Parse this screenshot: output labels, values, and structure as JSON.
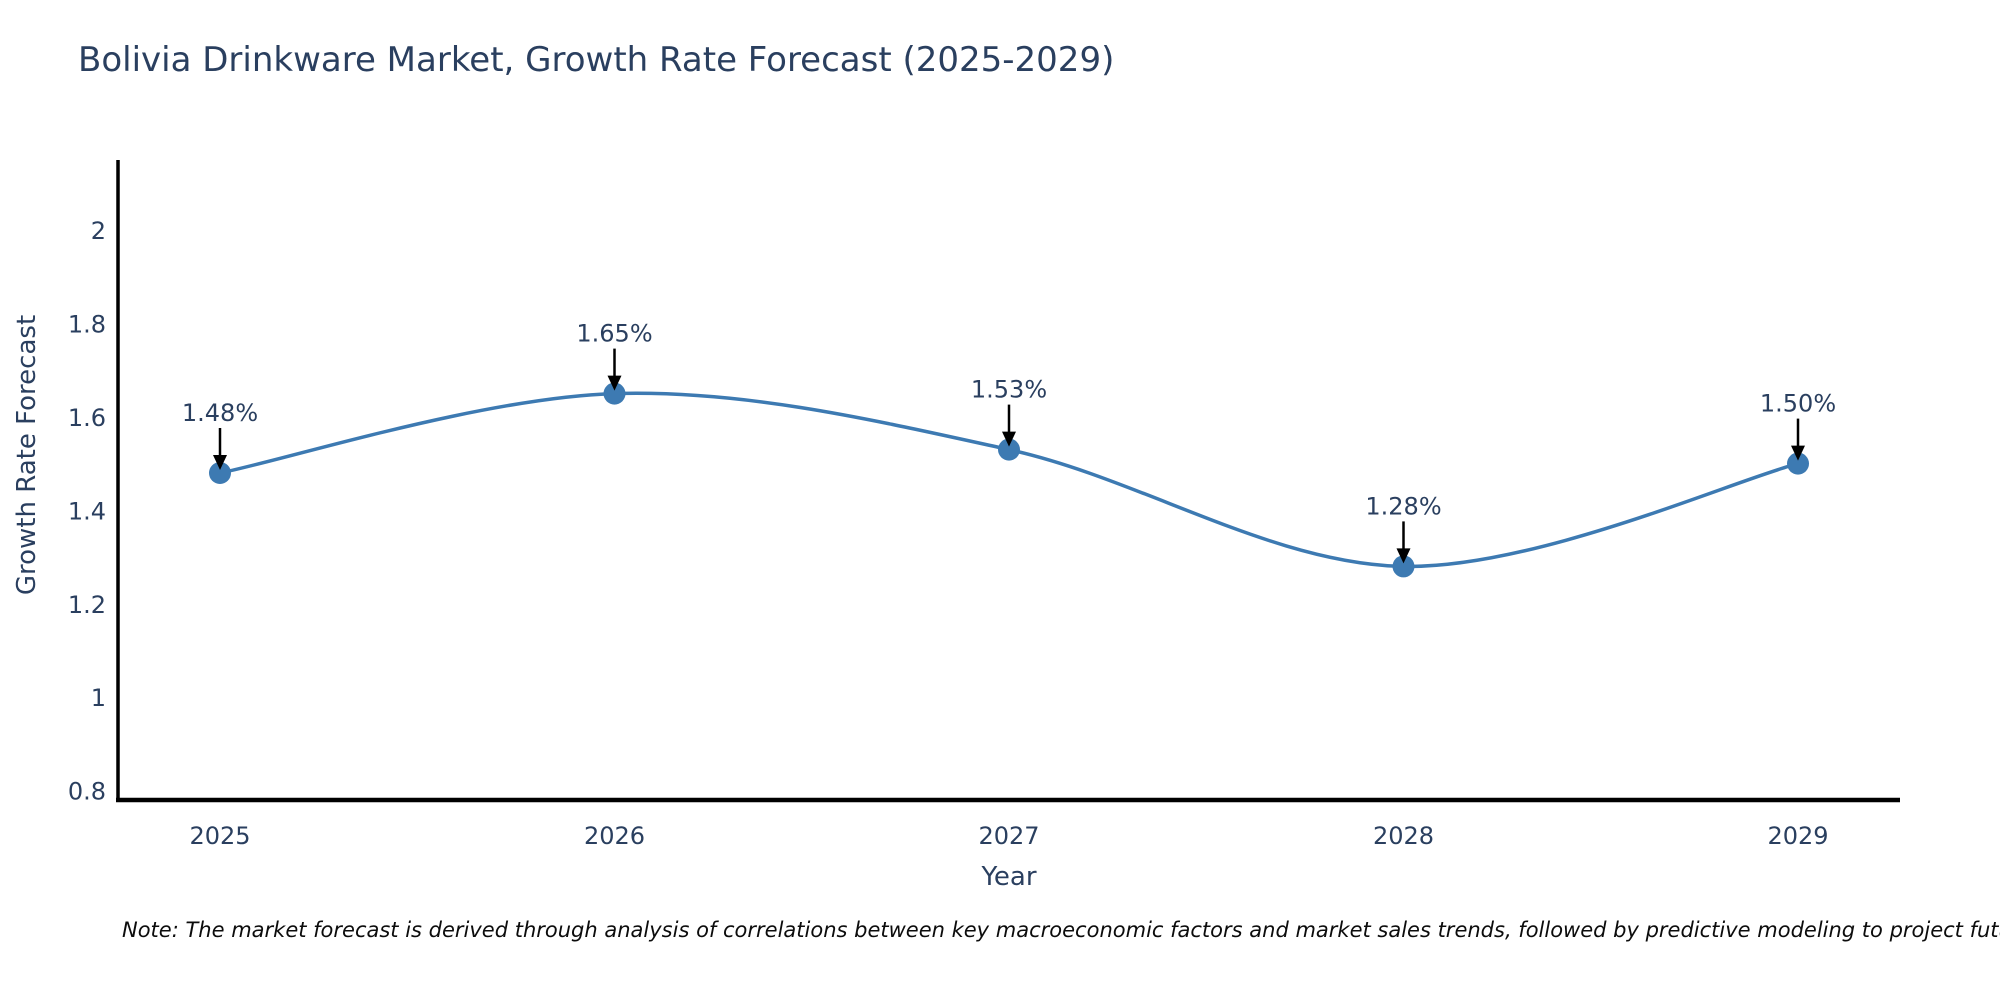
{
  "title": "Bolivia Drinkware Market, Growth Rate Forecast (2025-2029)",
  "note": "Note: The market forecast is derived through analysis of correlations between key macroeconomic factors and market sales trends, followed by predictive modeling to project future sales",
  "colors": {
    "line": "#3d7ab2",
    "marker": "#3d7ab2",
    "text": "#2a3f5f",
    "axis": "#000000",
    "annotation_arrow": "#000000",
    "background": "#ffffff"
  },
  "chart_data": {
    "type": "line",
    "title": "Bolivia Drinkware Market, Growth Rate Forecast (2025-2029)",
    "xlabel": "Year",
    "ylabel": "Growth Rate Forecast",
    "x": [
      2025,
      2026,
      2027,
      2028,
      2029
    ],
    "values": [
      1.48,
      1.65,
      1.53,
      1.28,
      1.5
    ],
    "point_labels": [
      "1.48%",
      "1.65%",
      "1.53%",
      "1.28%",
      "1.50%"
    ],
    "x_ticks": [
      "2025",
      "2026",
      "2027",
      "2028",
      "2029"
    ],
    "y_ticks": [
      "0.8",
      "1",
      "1.2",
      "1.4",
      "1.6",
      "1.8",
      "2"
    ],
    "y_tick_values": [
      0.8,
      1.0,
      1.2,
      1.4,
      1.6,
      1.8,
      2.0
    ],
    "ylim": [
      0.78,
      2.15
    ],
    "grid": false,
    "legend": false,
    "line_shape": "spline",
    "markers": true,
    "annotation_style": "value label above each point with downward black arrow"
  }
}
